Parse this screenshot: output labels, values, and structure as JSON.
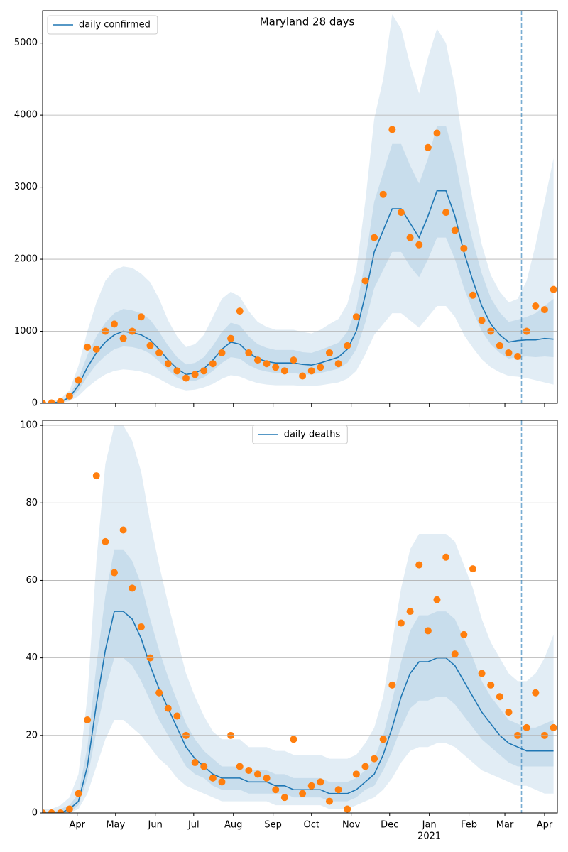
{
  "chart_data": [
    {
      "type": "line",
      "title": "Maryland 28 days",
      "x": [
        0,
        7,
        14,
        21,
        28,
        35,
        42,
        49,
        56,
        63,
        70,
        77,
        84,
        91,
        98,
        105,
        112,
        119,
        126,
        133,
        140,
        147,
        154,
        161,
        168,
        175,
        182,
        189,
        196,
        203,
        210,
        217,
        224,
        231,
        238,
        245,
        252,
        259,
        266,
        273,
        280,
        287,
        294,
        301,
        308,
        315,
        322,
        329,
        336,
        343,
        350,
        357,
        364,
        371,
        378,
        385,
        392,
        399
      ],
      "series": [
        {
          "name": "daily confirmed",
          "color": "#1f77b4",
          "values": [
            0,
            5,
            20,
            80,
            250,
            500,
            700,
            850,
            950,
            1000,
            980,
            950,
            880,
            750,
            600,
            480,
            400,
            420,
            480,
            600,
            750,
            850,
            820,
            700,
            620,
            580,
            560,
            560,
            560,
            540,
            530,
            560,
            600,
            640,
            750,
            1000,
            1500,
            2100,
            2400,
            2700,
            2700,
            2500,
            2300,
            2600,
            2950,
            2950,
            2600,
            2100,
            1700,
            1350,
            1100,
            950,
            850,
            870,
            880,
            880,
            900,
            890
          ]
        }
      ],
      "observed": {
        "color": "#ff7f0e",
        "values": [
          0,
          5,
          25,
          100,
          320,
          780,
          750,
          1000,
          1100,
          900,
          1000,
          1200,
          800,
          700,
          550,
          450,
          350,
          400,
          450,
          550,
          700,
          900,
          1280,
          700,
          600,
          550,
          500,
          450,
          600,
          380,
          450,
          500,
          700,
          550,
          800,
          1200,
          1700,
          2300,
          2900,
          3800,
          2650,
          2300,
          2200,
          3550,
          3750,
          2650,
          2400,
          2150,
          1500,
          1150,
          1000,
          800,
          700,
          650,
          1000,
          1350,
          1300,
          1580
        ]
      },
      "bands": [
        {
          "color": "#1f77b4",
          "lower": [
            0,
            1,
            6,
            30,
            100,
            220,
            320,
            400,
            450,
            470,
            460,
            440,
            400,
            340,
            270,
            210,
            180,
            190,
            220,
            270,
            340,
            390,
            370,
            320,
            280,
            260,
            250,
            250,
            250,
            240,
            240,
            250,
            270,
            290,
            340,
            450,
            680,
            950,
            1100,
            1250,
            1250,
            1150,
            1050,
            1200,
            1350,
            1350,
            1200,
            950,
            770,
            610,
            500,
            430,
            380,
            370,
            350,
            320,
            290,
            260
          ],
          "upper": [
            5,
            20,
            60,
            180,
            520,
            1000,
            1400,
            1700,
            1850,
            1900,
            1880,
            1800,
            1680,
            1450,
            1150,
            930,
            780,
            820,
            950,
            1200,
            1450,
            1550,
            1480,
            1280,
            1130,
            1060,
            1020,
            1020,
            1020,
            990,
            970,
            1020,
            1100,
            1170,
            1380,
            1850,
            2800,
            3950,
            4500,
            5400,
            5200,
            4700,
            4300,
            4800,
            5200,
            5000,
            4400,
            3500,
            2800,
            2200,
            1780,
            1550,
            1400,
            1450,
            1700,
            2200,
            2800,
            3400
          ]
        },
        {
          "color": "#1f77b4",
          "lower": [
            0,
            3,
            14,
            55,
            180,
            370,
            540,
            660,
            750,
            790,
            780,
            750,
            690,
            580,
            460,
            360,
            300,
            310,
            360,
            450,
            560,
            640,
            620,
            530,
            470,
            440,
            420,
            420,
            420,
            400,
            400,
            420,
            450,
            480,
            560,
            750,
            1120,
            1600,
            1850,
            2100,
            2100,
            1900,
            1750,
            2000,
            2300,
            2300,
            2000,
            1600,
            1280,
            1000,
            820,
            700,
            620,
            640,
            650,
            640,
            650,
            640
          ],
          "upper": [
            0,
            8,
            30,
            115,
            340,
            670,
            930,
            1120,
            1250,
            1310,
            1290,
            1250,
            1160,
            990,
            800,
            640,
            540,
            560,
            640,
            800,
            990,
            1120,
            1080,
            930,
            820,
            770,
            740,
            740,
            740,
            710,
            700,
            740,
            790,
            840,
            990,
            1320,
            1980,
            2800,
            3200,
            3600,
            3600,
            3300,
            3050,
            3400,
            3850,
            3850,
            3400,
            2750,
            2250,
            1800,
            1460,
            1260,
            1130,
            1160,
            1200,
            1250,
            1350,
            1450
          ]
        }
      ],
      "xlim": [
        0,
        402
      ],
      "xticks": [
        27,
        57,
        88,
        118,
        149,
        180,
        210,
        241,
        271,
        302,
        333,
        361,
        392
      ],
      "xtick_labels": false,
      "ylim": [
        0,
        5450
      ],
      "yticks": [
        0,
        1000,
        2000,
        3000,
        4000,
        5000
      ],
      "grid": true,
      "legend": "upper left",
      "vline": {
        "value": 374,
        "color": "#1f77b4"
      }
    },
    {
      "type": "line",
      "x": [
        0,
        7,
        14,
        21,
        28,
        35,
        42,
        49,
        56,
        63,
        70,
        77,
        84,
        91,
        98,
        105,
        112,
        119,
        126,
        133,
        140,
        147,
        154,
        161,
        168,
        175,
        182,
        189,
        196,
        203,
        210,
        217,
        224,
        231,
        238,
        245,
        252,
        259,
        266,
        273,
        280,
        287,
        294,
        301,
        308,
        315,
        322,
        329,
        336,
        343,
        350,
        357,
        364,
        371,
        378,
        385,
        392,
        399
      ],
      "series": [
        {
          "name": "daily deaths",
          "color": "#1f77b4",
          "values": [
            0,
            0,
            0,
            1,
            3,
            12,
            28,
            42,
            52,
            52,
            50,
            45,
            38,
            32,
            27,
            22,
            17,
            14,
            12,
            10,
            9,
            9,
            9,
            8,
            8,
            8,
            7,
            7,
            6,
            6,
            6,
            6,
            5,
            5,
            5,
            6,
            8,
            10,
            15,
            22,
            30,
            36,
            39,
            39,
            40,
            40,
            38,
            34,
            30,
            26,
            23,
            20,
            18,
            17,
            16,
            16,
            16,
            16
          ]
        }
      ],
      "observed": {
        "color": "#ff7f0e",
        "values": [
          0,
          0,
          0,
          1,
          5,
          24,
          87,
          70,
          62,
          73,
          58,
          48,
          40,
          31,
          27,
          25,
          20,
          13,
          12,
          9,
          8,
          20,
          12,
          11,
          10,
          9,
          6,
          4,
          19,
          5,
          7,
          8,
          3,
          6,
          1,
          10,
          12,
          14,
          19,
          33,
          49,
          52,
          64,
          47,
          55,
          66,
          41,
          46,
          63,
          36,
          33,
          30,
          26,
          20,
          22,
          31,
          20,
          22
        ]
      },
      "bands": [
        {
          "color": "#1f77b4",
          "lower": [
            0,
            0,
            0,
            0,
            1,
            5,
            12,
            19,
            24,
            24,
            22,
            20,
            17,
            14,
            12,
            9,
            7,
            6,
            5,
            4,
            3,
            3,
            3,
            3,
            3,
            3,
            2,
            2,
            2,
            2,
            2,
            2,
            1,
            1,
            1,
            2,
            3,
            4,
            6,
            9,
            13,
            16,
            17,
            17,
            18,
            18,
            17,
            15,
            13,
            11,
            10,
            9,
            8,
            7,
            7,
            6,
            5,
            5
          ],
          "upper": [
            1,
            1,
            2,
            4,
            10,
            30,
            65,
            90,
            100,
            100,
            96,
            88,
            75,
            64,
            54,
            45,
            36,
            30,
            25,
            21,
            19,
            19,
            19,
            17,
            17,
            17,
            16,
            16,
            15,
            15,
            15,
            15,
            14,
            14,
            14,
            15,
            18,
            22,
            30,
            44,
            58,
            68,
            72,
            72,
            72,
            72,
            70,
            64,
            58,
            50,
            44,
            40,
            36,
            34,
            34,
            36,
            40,
            46
          ]
        },
        {
          "color": "#1f77b4",
          "lower": [
            0,
            0,
            0,
            0,
            2,
            9,
            21,
            32,
            40,
            40,
            38,
            34,
            29,
            24,
            20,
            16,
            12,
            10,
            9,
            7,
            6,
            6,
            6,
            5,
            5,
            5,
            5,
            5,
            4,
            4,
            4,
            4,
            3,
            3,
            3,
            4,
            6,
            7,
            11,
            16,
            22,
            27,
            29,
            29,
            30,
            30,
            28,
            25,
            22,
            19,
            17,
            15,
            13,
            12,
            12,
            12,
            12,
            12
          ],
          "upper": [
            0,
            0,
            1,
            2,
            5,
            17,
            38,
            56,
            68,
            68,
            65,
            59,
            50,
            42,
            35,
            29,
            23,
            19,
            16,
            14,
            12,
            12,
            12,
            11,
            11,
            11,
            10,
            10,
            9,
            9,
            9,
            9,
            8,
            8,
            8,
            9,
            11,
            14,
            20,
            29,
            39,
            47,
            51,
            51,
            52,
            52,
            50,
            45,
            40,
            34,
            30,
            27,
            24,
            23,
            22,
            22,
            23,
            24
          ]
        }
      ],
      "xlim": [
        0,
        402
      ],
      "xticks": [
        {
          "value": 27,
          "label": "Apr"
        },
        {
          "value": 57,
          "label": "May"
        },
        {
          "value": 88,
          "label": "Jun"
        },
        {
          "value": 118,
          "label": "Jul"
        },
        {
          "value": 149,
          "label": "Aug"
        },
        {
          "value": 180,
          "label": "Sep"
        },
        {
          "value": 210,
          "label": "Oct"
        },
        {
          "value": 241,
          "label": "Nov"
        },
        {
          "value": 271,
          "label": "Dec"
        },
        {
          "value": 302,
          "label": "Jan"
        },
        {
          "value": 333,
          "label": "Feb"
        },
        {
          "value": 361,
          "label": "Mar"
        },
        {
          "value": 392,
          "label": "Apr"
        }
      ],
      "xticks_sub": [
        {
          "value": 302,
          "label": "2021"
        }
      ],
      "xtick_labels": true,
      "ylim": [
        0,
        101.3
      ],
      "yticks": [
        0,
        20,
        40,
        60,
        80,
        100
      ],
      "grid": true,
      "legend": "upper center",
      "vline": {
        "value": 374,
        "color": "#1f77b4"
      }
    }
  ]
}
